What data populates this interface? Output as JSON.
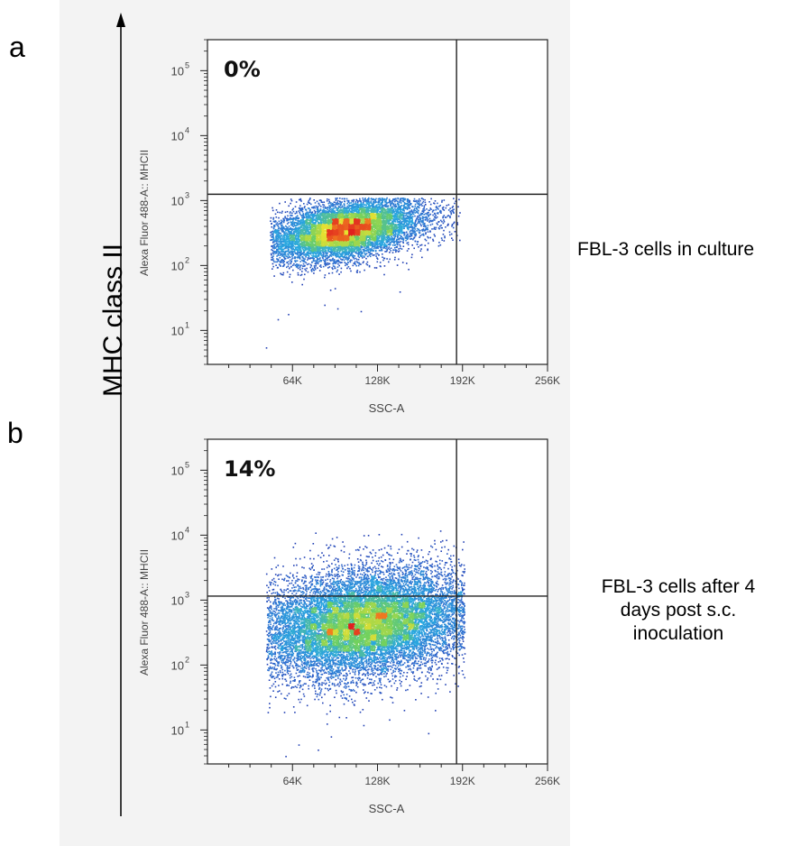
{
  "figure": {
    "big_ylabel": "MHC class II",
    "panels": [
      {
        "letter": "a",
        "condition": "FBL-3 cells in culture"
      },
      {
        "letter": "b",
        "condition": "FBL-3 cells after 4 days post s.c. inoculation"
      }
    ]
  },
  "chart_data": [
    {
      "type": "scatter",
      "panel": "a",
      "plot_style": "flow cytometry density dot plot",
      "xlabel": "SSC-A",
      "ylabel": "Alexa Fluor 488-A:: MHCII",
      "xlim": [
        0,
        262144
      ],
      "x_ticks": [
        {
          "value": 65536,
          "label": "64K"
        },
        {
          "value": 131072,
          "label": "128K"
        },
        {
          "value": 196608,
          "label": "192K"
        },
        {
          "value": 262144,
          "label": "256K"
        }
      ],
      "y_scale": "log",
      "ylim": [
        3,
        300000
      ],
      "y_ticks": [
        {
          "value": 10,
          "base": "10",
          "exp": "1"
        },
        {
          "value": 100,
          "base": "10",
          "exp": "2"
        },
        {
          "value": 1000,
          "base": "10",
          "exp": "3"
        },
        {
          "value": 10000,
          "base": "10",
          "exp": "4"
        },
        {
          "value": 100000,
          "base": "10",
          "exp": "5"
        }
      ],
      "gates": {
        "x": 192000,
        "y": 1250
      },
      "quadrant_percent": "0%",
      "population": {
        "n_points": 9000,
        "x_center": 105000,
        "x_sd": 30000,
        "x_min": 48000,
        "x_max": 195000,
        "log10y_center": 2.55,
        "log10y_sd": 0.22,
        "log10y_slope_per_64k": 0.2,
        "log10y_max": 3.05,
        "outliers": [
          [
            45000,
            5.5
          ],
          [
            54000,
            15
          ],
          [
            62000,
            18
          ],
          [
            90000,
            25
          ],
          [
            100000,
            22
          ],
          [
            118000,
            20
          ],
          [
            98000,
            45
          ],
          [
            148000,
            40
          ]
        ]
      },
      "colors": {
        "low": "#1c2aa8",
        "mid": "#2aa8e0",
        "high": "#e02020"
      }
    },
    {
      "type": "scatter",
      "panel": "b",
      "plot_style": "flow cytometry density dot plot",
      "xlabel": "SSC-A",
      "ylabel": "Alexa Fluor 488-A:: MHCII",
      "xlim": [
        0,
        262144
      ],
      "x_ticks": [
        {
          "value": 65536,
          "label": "64K"
        },
        {
          "value": 131072,
          "label": "128K"
        },
        {
          "value": 196608,
          "label": "192K"
        },
        {
          "value": 262144,
          "label": "256K"
        }
      ],
      "y_scale": "log",
      "ylim": [
        3,
        300000
      ],
      "y_ticks": [
        {
          "value": 10,
          "base": "10",
          "exp": "1"
        },
        {
          "value": 100,
          "base": "10",
          "exp": "2"
        },
        {
          "value": 1000,
          "base": "10",
          "exp": "3"
        },
        {
          "value": 10000,
          "base": "10",
          "exp": "4"
        },
        {
          "value": 100000,
          "base": "10",
          "exp": "5"
        }
      ],
      "gates": {
        "x": 192000,
        "y": 1150
      },
      "quadrant_percent": "14%",
      "population": {
        "n_points": 14000,
        "x_center": 120000,
        "x_sd": 42000,
        "x_min": 45000,
        "x_max": 198000,
        "log10y_center": 2.65,
        "log10y_sd": 0.4,
        "log10y_slope_per_64k": 0.15,
        "log10y_max": 4.1,
        "outliers": [
          [
            60000,
            4
          ],
          [
            70000,
            6
          ],
          [
            85000,
            5
          ],
          [
            95000,
            8
          ],
          [
            120000,
            12
          ],
          [
            170000,
            9
          ],
          [
            160000,
            30
          ]
        ]
      },
      "colors": {
        "low": "#1c2aa8",
        "mid": "#2aa8e0",
        "high": "#e02020"
      }
    }
  ]
}
